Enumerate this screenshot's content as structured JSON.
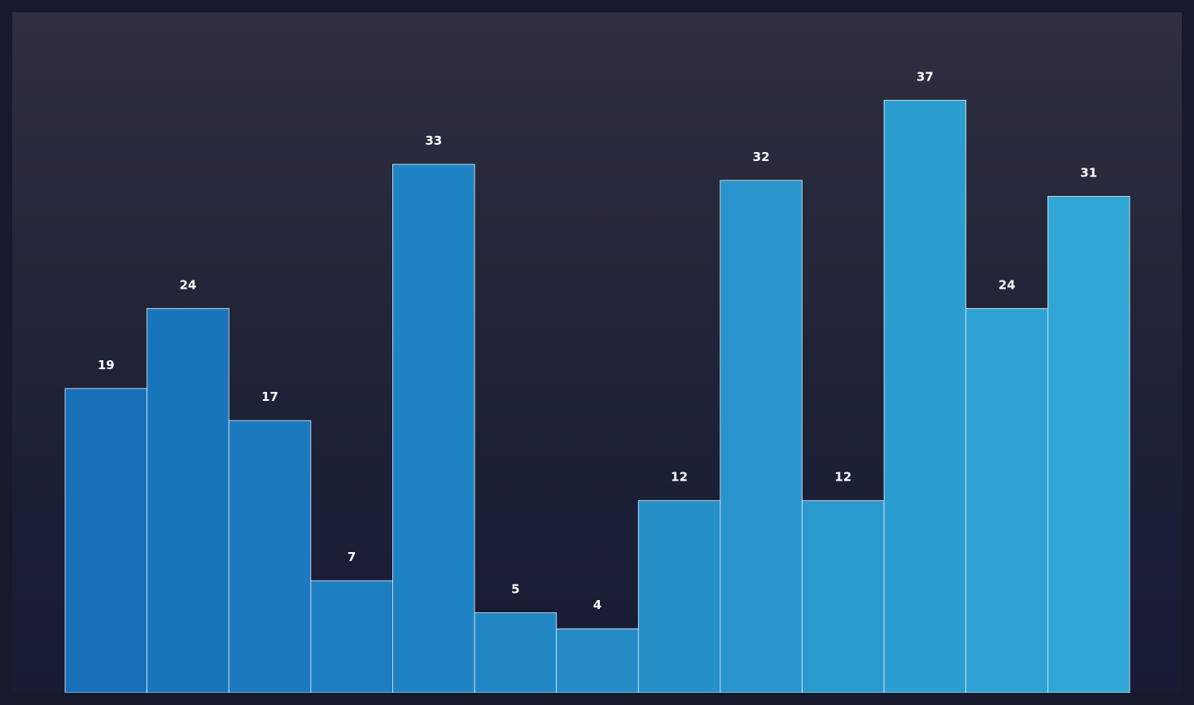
{
  "chart_data": {
    "type": "bar",
    "title": "",
    "xlabel": "",
    "ylabel": "",
    "values": [
      19,
      24,
      17,
      7,
      33,
      5,
      4,
      12,
      32,
      12,
      37,
      24,
      31
    ],
    "ylim": [
      0,
      42.5
    ],
    "grid": false,
    "legend": "none",
    "bar_gap": 0,
    "colors": {
      "start": "#1770b8",
      "end": "#30a6d5",
      "edge": "#e6edf5"
    }
  }
}
